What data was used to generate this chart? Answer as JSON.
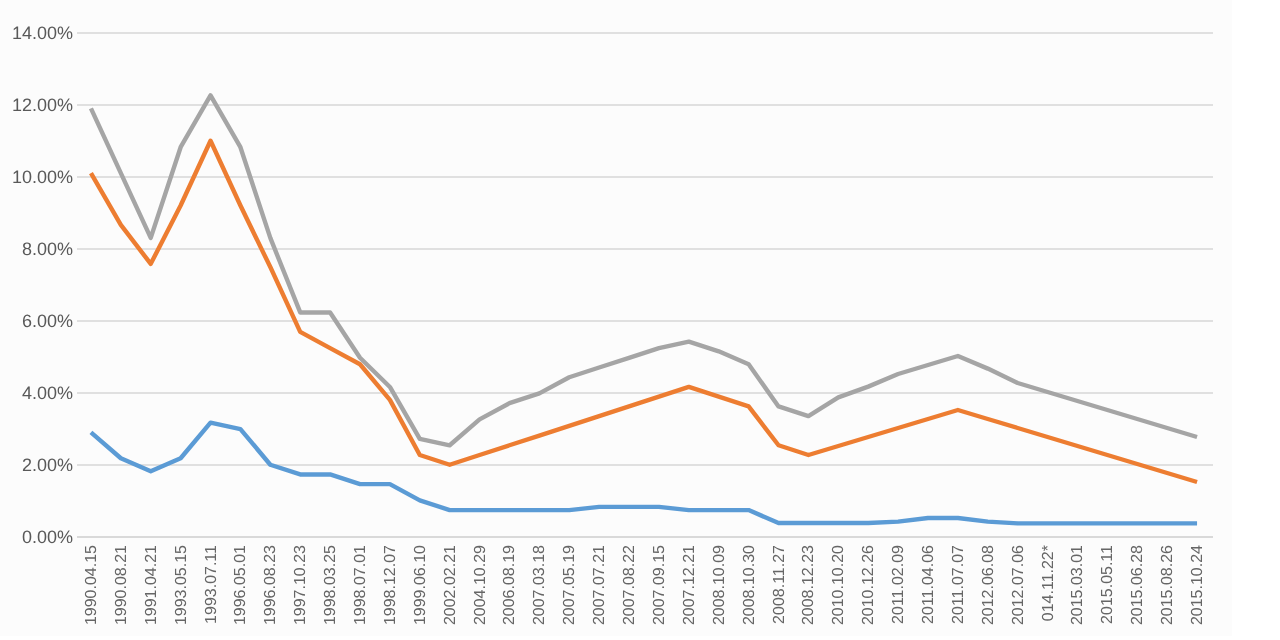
{
  "chart_data": {
    "type": "line",
    "categories": [
      "1990.04.15",
      "1990.08.21",
      "1991.04.21",
      "1993.05.15",
      "1993.07.11",
      "1996.05.01",
      "1996.08.23",
      "1997.10.23",
      "1998.03.25",
      "1998.07.01",
      "1998.12.07",
      "1999.06.10",
      "2002.02.21",
      "2004.10.29",
      "2006.08.19",
      "2007.03.18",
      "2007.05.19",
      "2007.07.21",
      "2007.08.22",
      "2007.09.15",
      "2007.12.21",
      "2008.10.09",
      "2008.10.30",
      "2008.11.27",
      "2008.12.23",
      "2010.10.20",
      "2010.12.26",
      "2011.02.09",
      "2011.04.06",
      "2011.07.07",
      "2012.06.08",
      "2012.07.06",
      "014.11.22*",
      "2015.03.01",
      "2015.05.11",
      "2015.06.28",
      "2015.08.26",
      "2015.10.24"
    ],
    "series": [
      {
        "color": "#5b9bd5",
        "values": [
          2.88,
          2.16,
          1.8,
          2.16,
          3.15,
          2.97,
          1.98,
          1.71,
          1.71,
          1.44,
          1.44,
          0.99,
          0.72,
          0.72,
          0.72,
          0.72,
          0.72,
          0.81,
          0.81,
          0.81,
          0.72,
          0.72,
          0.72,
          0.36,
          0.36,
          0.36,
          0.36,
          0.4,
          0.5,
          0.5,
          0.4,
          0.35,
          0.35,
          0.35,
          0.35,
          0.35,
          0.35,
          0.35
        ]
      },
      {
        "color": "#ed7d31",
        "values": [
          10.08,
          8.64,
          7.56,
          9.18,
          10.98,
          9.18,
          7.47,
          5.67,
          5.22,
          4.77,
          3.78,
          2.25,
          1.98,
          2.25,
          2.52,
          2.79,
          3.06,
          3.33,
          3.6,
          3.87,
          4.14,
          3.87,
          3.6,
          2.52,
          2.25,
          2.5,
          2.75,
          3.0,
          3.25,
          3.5,
          3.25,
          3.0,
          2.75,
          2.5,
          2.25,
          2.0,
          1.75,
          1.5
        ]
      },
      {
        "color": "#a5a5a5",
        "values": [
          11.88,
          10.08,
          8.28,
          10.8,
          12.24,
          10.8,
          8.28,
          6.21,
          6.21,
          4.95,
          4.14,
          2.7,
          2.52,
          3.24,
          3.69,
          3.96,
          4.41,
          4.68,
          4.95,
          5.22,
          5.4,
          5.13,
          4.77,
          3.6,
          3.33,
          3.85,
          4.15,
          4.5,
          4.75,
          5.0,
          4.65,
          4.25,
          4.0,
          3.75,
          3.5,
          3.25,
          3.0,
          2.75
        ]
      }
    ],
    "ylim": [
      0,
      14
    ],
    "yticks": [
      {
        "value": 0,
        "label": "0.00%"
      },
      {
        "value": 2,
        "label": "2.00%"
      },
      {
        "value": 4,
        "label": "4.00%"
      },
      {
        "value": 6,
        "label": "6.00%"
      },
      {
        "value": 8,
        "label": "8.00%"
      },
      {
        "value": 10,
        "label": "10.00%"
      },
      {
        "value": 12,
        "label": "12.00%"
      },
      {
        "value": 14,
        "label": "14.00%"
      }
    ],
    "grid": "y",
    "legend": false,
    "marker": "none",
    "line_style": "solid"
  }
}
